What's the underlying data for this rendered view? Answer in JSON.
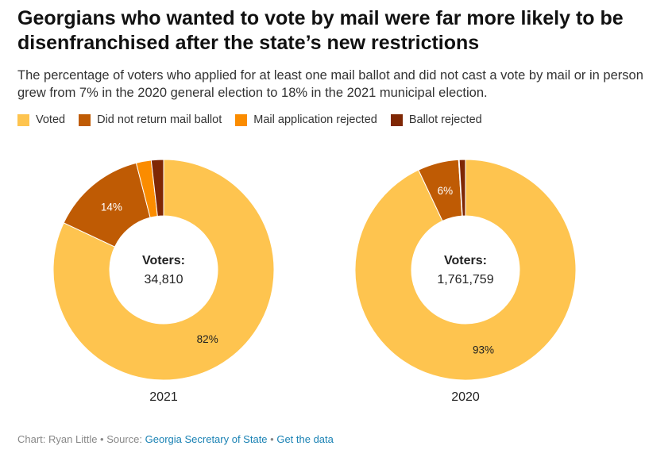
{
  "title": "Georgians who wanted to vote by mail were far more likely to be disenfranchised after the state’s new restrictions",
  "subtitle": "The percentage of voters who applied for at least one mail ballot and did not cast a vote by mail or in person grew from 7% in the 2020 general election to 18% in the 2021 municipal election.",
  "footer": {
    "credit": "Chart: Ryan Little • Source: ",
    "source": "Georgia Secretary of State",
    "sep": " • ",
    "get_data": "Get the data"
  },
  "chart_data": [
    {
      "type": "pie",
      "variant": "donut",
      "title": "2021",
      "center_label": "Voters:",
      "center_value": "34,810",
      "categories": [
        "Voted",
        "Did not return mail ballot",
        "Mail application rejected",
        "Ballot rejected"
      ],
      "values": [
        82,
        14,
        2.2,
        1.8
      ],
      "data_labels": [
        "82%",
        "14%",
        "",
        ""
      ],
      "colors": [
        "#fec44f",
        "#bf5b04",
        "#fb8c00",
        "#7f2704"
      ]
    },
    {
      "type": "pie",
      "variant": "donut",
      "title": "2020",
      "center_label": "Voters:",
      "center_value": "1,761,759",
      "categories": [
        "Voted",
        "Did not return mail ballot",
        "Mail application rejected",
        "Ballot rejected"
      ],
      "values": [
        93,
        6,
        0.1,
        0.9
      ],
      "data_labels": [
        "93%",
        "6%",
        "",
        ""
      ],
      "colors": [
        "#fec44f",
        "#bf5b04",
        "#fb8c00",
        "#7f2704"
      ]
    }
  ]
}
